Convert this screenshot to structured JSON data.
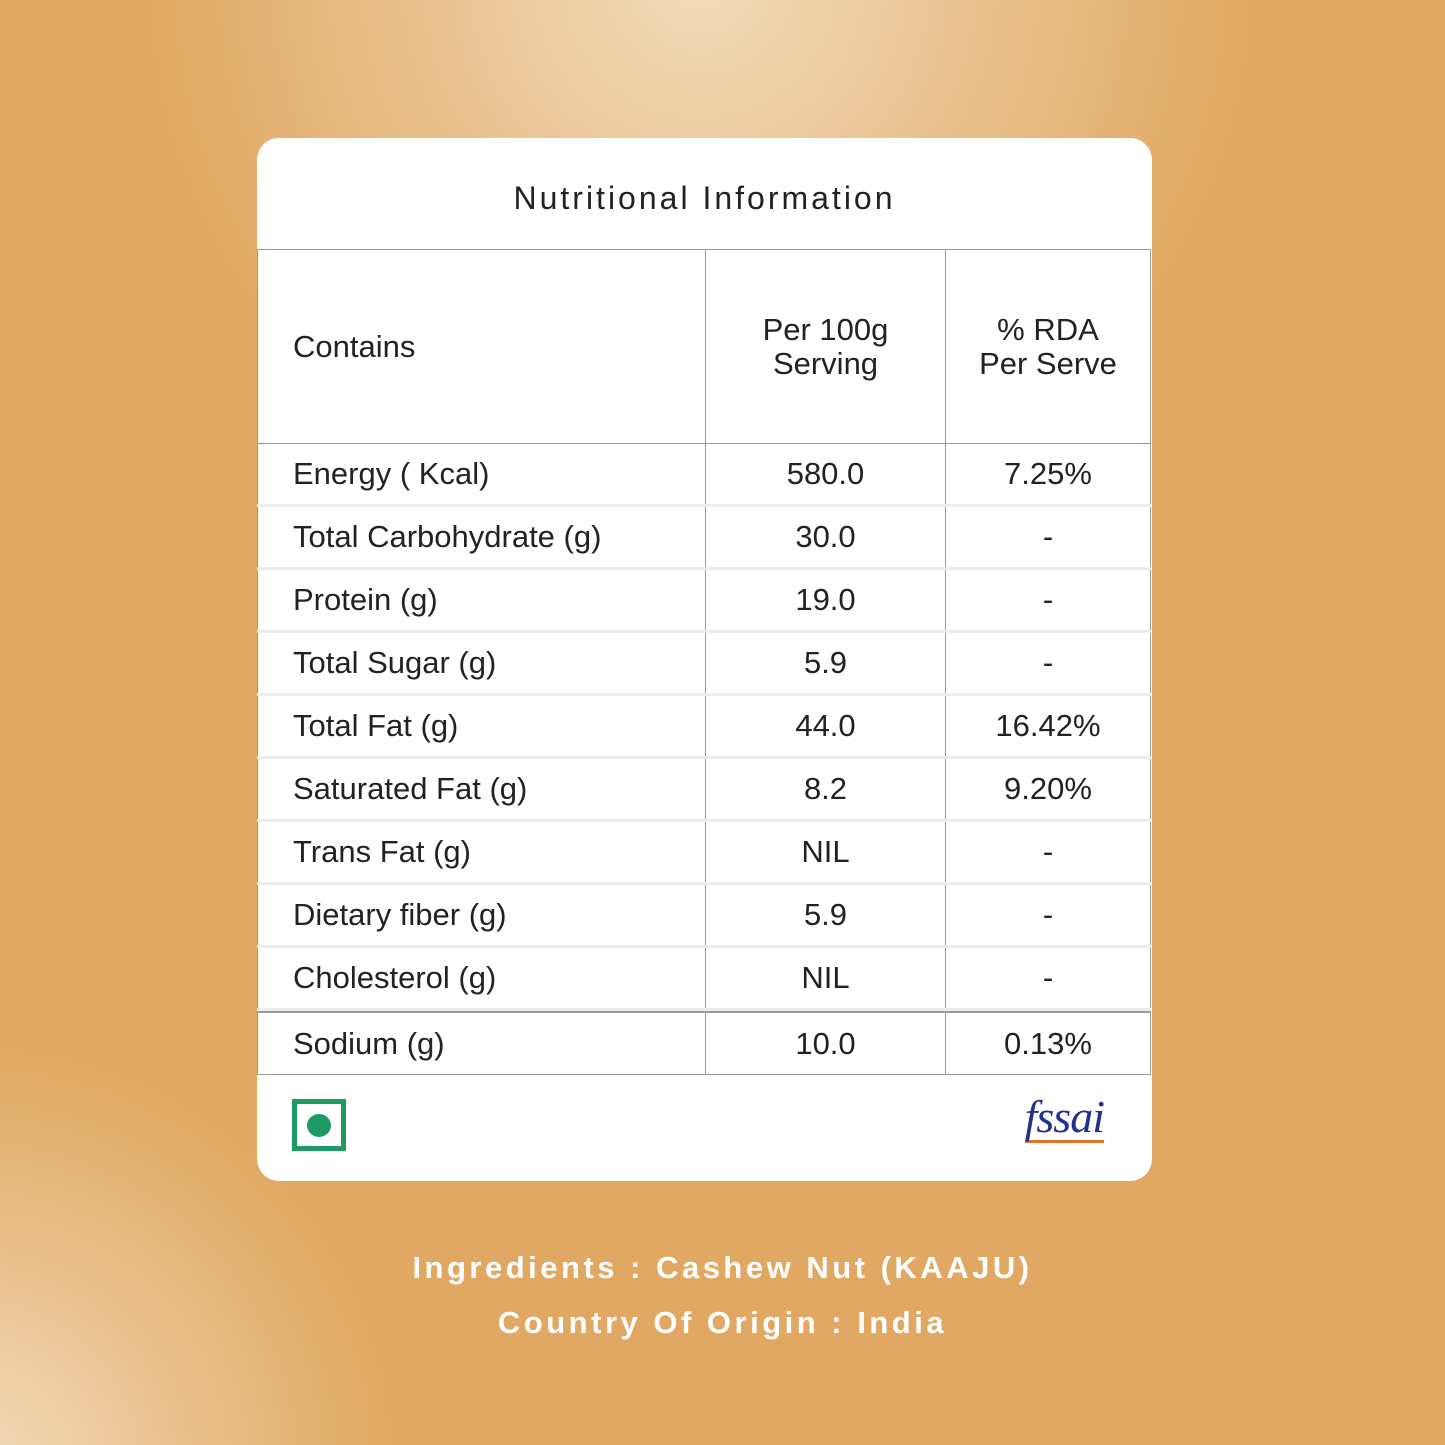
{
  "card": {
    "title": "Nutritional Information",
    "table": {
      "header": [
        "Contains",
        "Per 100g Serving",
        "% RDA Per Serve"
      ],
      "rows": [
        [
          "Energy ( Kcal)",
          "580.0",
          "7.25%"
        ],
        [
          "Total Carbohydrate (g)",
          "30.0",
          "-"
        ],
        [
          "Protein (g)",
          "19.0",
          "-"
        ],
        [
          "Total Sugar (g)",
          "5.9",
          "-"
        ],
        [
          "Total Fat (g)",
          "44.0",
          "16.42%"
        ],
        [
          "Saturated Fat (g)",
          "8.2",
          "9.20%"
        ],
        [
          "Trans Fat (g)",
          "NIL",
          "-"
        ],
        [
          "Dietary fiber (g)",
          "5.9",
          "-"
        ],
        [
          "Cholesterol (g)",
          "NIL",
          "-"
        ],
        [
          "Sodium (g)",
          "10.0",
          "0.13%"
        ]
      ]
    },
    "logo": "fssai"
  },
  "footer": {
    "ingredients": "Ingredients : Cashew Nut (KAAJU)",
    "origin": "Country Of Origin : India"
  }
}
